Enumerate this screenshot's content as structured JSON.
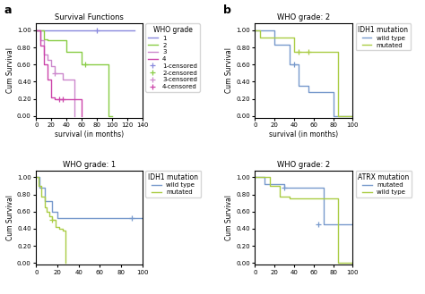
{
  "chart_data": [
    {
      "type": "step",
      "title": "Survival Functions",
      "panel_label": "a",
      "x_label": "survival (in months)",
      "y_label": "Cum Survival",
      "legend": "right",
      "legend_title": "WHO grade",
      "xlim": [
        0,
        140
      ],
      "xticks": [
        0,
        20,
        40,
        60,
        80,
        100,
        120,
        140
      ],
      "ylim": [
        -0.02,
        1.08
      ],
      "yticks": [
        {
          "value": 0.0,
          "label": "0.00"
        },
        {
          "value": 0.2,
          "label": "0.20"
        },
        {
          "value": 0.4,
          "label": "0.40"
        },
        {
          "value": 0.6,
          "label": "0.60"
        },
        {
          "value": 0.8,
          "label": "0.80"
        },
        {
          "value": 1.0,
          "label": "1.00"
        }
      ],
      "series": [
        {
          "name": "1",
          "type": "step",
          "color": "#8888dd",
          "x": [
            0,
            10,
            20,
            30,
            40,
            50,
            60,
            70,
            80,
            90,
            100,
            110,
            120,
            130
          ],
          "values": [
            1.0,
            1.0,
            1.0,
            1.0,
            1.0,
            1.0,
            1.0,
            1.0,
            1.0,
            1.0,
            1.0,
            1.0,
            1.0,
            1.0
          ]
        },
        {
          "name": "2",
          "type": "step",
          "color": "#88cc44",
          "x": [
            0,
            10,
            15,
            20,
            30,
            40,
            50,
            60,
            70,
            80,
            90,
            95,
            100
          ],
          "values": [
            1.0,
            0.9,
            0.88,
            0.88,
            0.88,
            0.75,
            0.75,
            0.6,
            0.6,
            0.6,
            0.6,
            0.0,
            0.0
          ]
        },
        {
          "name": "3",
          "type": "step",
          "color": "#cc88cc",
          "x": [
            0,
            5,
            10,
            15,
            20,
            25,
            30,
            35,
            40,
            45,
            50
          ],
          "values": [
            1.0,
            0.88,
            0.72,
            0.65,
            0.58,
            0.5,
            0.5,
            0.42,
            0.42,
            0.42,
            0.0
          ]
        },
        {
          "name": "4",
          "type": "step",
          "color": "#cc44aa",
          "x": [
            0,
            5,
            10,
            15,
            20,
            25,
            30,
            35,
            40,
            45,
            50,
            55,
            60
          ],
          "values": [
            1.0,
            0.82,
            0.6,
            0.42,
            0.22,
            0.2,
            0.2,
            0.2,
            0.2,
            0.2,
            0.2,
            0.2,
            0.0
          ]
        },
        {
          "name": "1-censored",
          "type": "scatter",
          "marker": "plus",
          "color": "#8888dd",
          "x": [
            80
          ],
          "values": [
            1.0
          ]
        },
        {
          "name": "2-censored",
          "type": "scatter",
          "marker": "plus",
          "color": "#88cc44",
          "x": [
            65
          ],
          "values": [
            0.6
          ]
        },
        {
          "name": "3-censored",
          "type": "scatter",
          "marker": "plus",
          "color": "#cc88cc",
          "x": [
            25
          ],
          "values": [
            0.5
          ]
        },
        {
          "name": "4-censored",
          "type": "scatter",
          "marker": "plus",
          "color": "#cc44aa",
          "x": [
            30,
            35
          ],
          "values": [
            0.2,
            0.2
          ]
        }
      ]
    },
    {
      "type": "step",
      "title": "WHO grade: 2",
      "panel_label": "b",
      "x_label": "survival (in months)",
      "y_label": "Cum Survival",
      "legend": "right",
      "legend_title": "IDH1 mutation",
      "xlim": [
        0,
        100
      ],
      "xticks": [
        0,
        20,
        40,
        60,
        80,
        100
      ],
      "ylim": [
        -0.02,
        1.08
      ],
      "yticks": [
        {
          "value": 0.0,
          "label": "0.00"
        },
        {
          "value": 0.2,
          "label": "0.20"
        },
        {
          "value": 0.4,
          "label": "0.40"
        },
        {
          "value": 0.6,
          "label": "0.60"
        },
        {
          "value": 0.8,
          "label": "0.80"
        },
        {
          "value": 1.0,
          "label": "1.00"
        }
      ],
      "series": [
        {
          "name": "wild type",
          "type": "step",
          "color": "#7799cc",
          "x": [
            0,
            10,
            20,
            25,
            35,
            40,
            45,
            55,
            60,
            65,
            70,
            75,
            80,
            85,
            90,
            95,
            100
          ],
          "values": [
            1.0,
            1.0,
            0.83,
            0.83,
            0.6,
            0.6,
            0.35,
            0.28,
            0.28,
            0.28,
            0.28,
            0.28,
            0.0,
            0.0,
            0.0,
            0.0,
            0.0
          ]
        },
        {
          "name": "mutated",
          "type": "step",
          "color": "#aacc44",
          "x": [
            0,
            5,
            10,
            20,
            30,
            40,
            50,
            55,
            60,
            65,
            70,
            80,
            85,
            90,
            100
          ],
          "values": [
            1.0,
            0.92,
            0.92,
            0.92,
            0.92,
            0.75,
            0.75,
            0.75,
            0.75,
            0.75,
            0.75,
            0.75,
            0.0,
            0.0,
            0.0
          ]
        },
        {
          "type": "scatter",
          "marker": "plus",
          "color": "#7799cc",
          "x": [
            40
          ],
          "values": [
            0.6
          ]
        },
        {
          "type": "scatter",
          "marker": "plus",
          "color": "#aacc44",
          "x": [
            45,
            55
          ],
          "values": [
            0.75,
            0.75
          ]
        }
      ]
    },
    {
      "type": "step",
      "title": "WHO grade: 1",
      "y_label": "Cum Survival",
      "legend": "right",
      "legend_title": "IDH1 mutation",
      "xlim": [
        0,
        100
      ],
      "xticks": [
        0,
        20,
        40,
        60,
        80,
        100
      ],
      "ylim": [
        -0.02,
        1.08
      ],
      "yticks": [
        {
          "value": 0.0,
          "label": "0.00"
        },
        {
          "value": 0.2,
          "label": "0.20"
        },
        {
          "value": 0.4,
          "label": "0.40"
        },
        {
          "value": 0.6,
          "label": "0.60"
        },
        {
          "value": 0.8,
          "label": "0.80"
        },
        {
          "value": 1.0,
          "label": "1.00"
        }
      ],
      "series": [
        {
          "name": "wild type",
          "type": "step",
          "color": "#7799cc",
          "x": [
            0,
            3,
            8,
            15,
            20,
            25,
            30,
            35,
            40,
            50,
            60,
            70,
            80,
            90,
            100
          ],
          "values": [
            1.0,
            0.88,
            0.72,
            0.6,
            0.52,
            0.52,
            0.52,
            0.52,
            0.52,
            0.52,
            0.52,
            0.52,
            0.52,
            0.52,
            0.52
          ]
        },
        {
          "name": "mutated",
          "type": "step",
          "color": "#aacc44",
          "x": [
            0,
            2,
            5,
            8,
            10,
            12,
            15,
            18,
            20,
            22,
            25,
            28
          ],
          "values": [
            1.0,
            0.9,
            0.78,
            0.65,
            0.6,
            0.55,
            0.5,
            0.42,
            0.42,
            0.4,
            0.38,
            0.0
          ]
        },
        {
          "type": "scatter",
          "marker": "plus",
          "color": "#7799cc",
          "x": [
            90
          ],
          "values": [
            0.52
          ]
        },
        {
          "type": "scatter",
          "marker": "plus",
          "color": "#aacc44",
          "x": [
            15
          ],
          "values": [
            0.5
          ]
        }
      ]
    },
    {
      "type": "step",
      "title": "WHO grade: 2",
      "y_label": "Cum Survival",
      "legend": "right",
      "legend_title": "ATRX mutation",
      "xlim": [
        0,
        100
      ],
      "xticks": [
        0,
        20,
        40,
        60,
        80,
        100
      ],
      "ylim": [
        -0.02,
        1.08
      ],
      "yticks": [
        {
          "value": 0.0,
          "label": "0.00"
        },
        {
          "value": 0.2,
          "label": "0.20"
        },
        {
          "value": 0.4,
          "label": "0.40"
        },
        {
          "value": 0.6,
          "label": "0.60"
        },
        {
          "value": 0.8,
          "label": "0.80"
        },
        {
          "value": 1.0,
          "label": "1.00"
        }
      ],
      "series": [
        {
          "name": "mutated",
          "type": "step",
          "color": "#7799cc",
          "x": [
            0,
            5,
            10,
            15,
            20,
            25,
            30,
            35,
            40,
            45,
            50,
            55,
            60,
            65,
            70,
            75,
            80,
            85,
            90,
            95,
            100
          ],
          "values": [
            1.0,
            1.0,
            0.92,
            0.92,
            0.92,
            0.92,
            0.88,
            0.88,
            0.88,
            0.88,
            0.88,
            0.88,
            0.88,
            0.88,
            0.45,
            0.45,
            0.45,
            0.45,
            0.45,
            0.45,
            0.45
          ]
        },
        {
          "name": "wild type",
          "type": "step",
          "color": "#aacc44",
          "x": [
            0,
            5,
            10,
            15,
            20,
            25,
            30,
            35,
            40,
            45,
            50,
            55,
            60,
            65,
            70,
            75,
            80,
            85,
            90,
            95,
            100
          ],
          "values": [
            1.0,
            1.0,
            1.0,
            0.9,
            0.9,
            0.78,
            0.78,
            0.75,
            0.75,
            0.75,
            0.75,
            0.75,
            0.75,
            0.75,
            0.75,
            0.75,
            0.75,
            0.0,
            0.0,
            0.0,
            0.0
          ]
        },
        {
          "type": "scatter",
          "marker": "plus",
          "color": "#7799cc",
          "x": [
            30,
            65
          ],
          "values": [
            0.88,
            0.45
          ]
        }
      ]
    }
  ]
}
